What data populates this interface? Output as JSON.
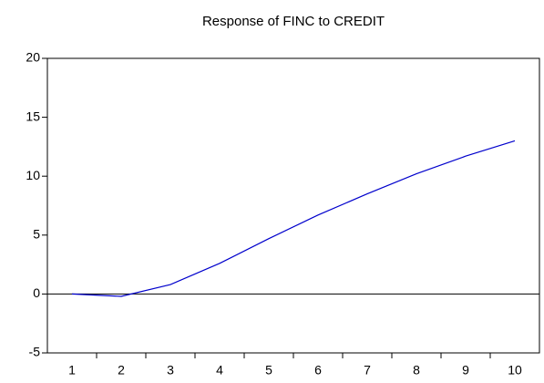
{
  "chart_data": {
    "type": "line",
    "title": "Response of FINC to CREDIT",
    "categories": [
      "1",
      "2",
      "3",
      "4",
      "5",
      "6",
      "7",
      "8",
      "9",
      "10"
    ],
    "series": [
      {
        "color": "#0000cc",
        "values": [
          0,
          -0.2,
          0.8,
          2.6,
          4.7,
          6.7,
          8.5,
          10.2,
          11.7,
          13.0
        ]
      }
    ],
    "ylim": [
      -5,
      20
    ],
    "yticks": [
      -5,
      0,
      5,
      10,
      15,
      20
    ]
  }
}
